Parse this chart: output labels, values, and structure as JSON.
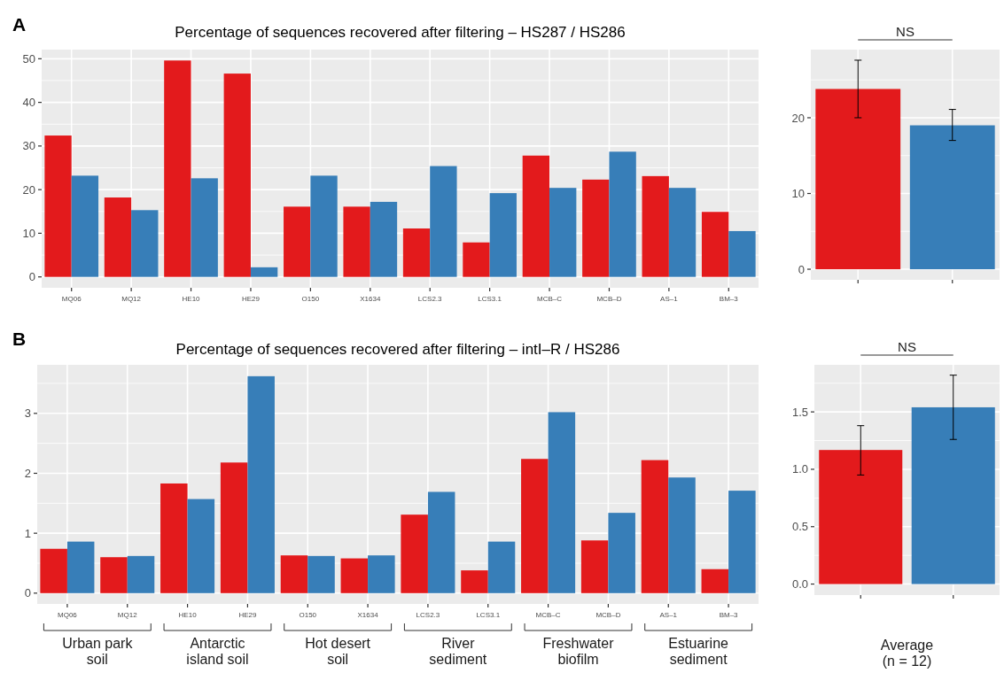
{
  "chart_data": [
    {
      "type": "bar",
      "title": "Percentage of sequences recovered after filtering – HS287 / HS286",
      "annotations": [
        "A"
      ],
      "categories": [
        "MQ06",
        "MQ12",
        "HE10",
        "HE29",
        "O150",
        "X1634",
        "LCS2.3",
        "LCS3.1",
        "MCB–C",
        "MCB–D",
        "AS–1",
        "BM–3"
      ],
      "series": [
        {
          "color": "#e31a1c",
          "values": [
            32.4,
            18.2,
            49.6,
            46.6,
            16.1,
            16.1,
            11.1,
            7.9,
            27.8,
            22.3,
            23.1,
            14.9
          ]
        },
        {
          "color": "#377eb8",
          "values": [
            23.2,
            15.3,
            22.6,
            2.2,
            23.2,
            17.2,
            25.4,
            19.2,
            20.4,
            28.7,
            20.4,
            10.5
          ]
        }
      ],
      "ylim": [
        -2.5,
        52.1
      ],
      "yticks": [
        0,
        10,
        20,
        30,
        40,
        50
      ],
      "grid": true
    },
    {
      "type": "bar",
      "annotations": [
        "NS"
      ],
      "categories": [
        null,
        null
      ],
      "values": [
        23.8,
        19.0
      ],
      "colors": [
        "#e31a1c",
        "#377eb8"
      ],
      "errors": [
        [
          20.0,
          27.6
        ],
        [
          17.0,
          21.1
        ]
      ],
      "ylim": [
        -1.4,
        29
      ],
      "yticks": [
        0,
        10,
        20
      ],
      "grid": true
    },
    {
      "type": "bar",
      "title": "Percentage of sequences recovered after filtering – intI–R / HS286",
      "annotations": [
        "B",
        "Urban park soil",
        "Antarctic island soil",
        "Hot desert soil",
        "River sediment",
        "Freshwater biofilm",
        "Estuarine sediment"
      ],
      "categories": [
        "MQ06",
        "MQ12",
        "HE10",
        "HE29",
        "O150",
        "X1634",
        "LCS2.3",
        "LCS3.1",
        "MCB–C",
        "MCB–D",
        "AS–1",
        "BM–3"
      ],
      "series": [
        {
          "color": "#e31a1c",
          "values": [
            0.74,
            0.6,
            1.83,
            2.18,
            0.63,
            0.58,
            1.31,
            0.38,
            2.24,
            0.88,
            2.22,
            0.4
          ]
        },
        {
          "color": "#377eb8",
          "values": [
            0.86,
            0.62,
            1.57,
            3.62,
            0.62,
            0.63,
            1.69,
            0.86,
            3.02,
            1.34,
            1.93,
            1.71
          ]
        }
      ],
      "ylim": [
        -0.18,
        3.81
      ],
      "yticks": [
        0,
        1,
        2,
        3
      ],
      "grid": true
    },
    {
      "type": "bar",
      "annotations": [
        "NS"
      ],
      "xlabel": "Average (n = 12)",
      "categories": [
        null,
        null
      ],
      "values": [
        1.168,
        1.54
      ],
      "colors": [
        "#e31a1c",
        "#377eb8"
      ],
      "errors": [
        [
          0.95,
          1.38
        ],
        [
          1.26,
          1.82
        ]
      ],
      "ylim": [
        -0.096,
        1.91
      ],
      "yticks": [
        {
          "value": 0,
          "label": "0.0"
        },
        {
          "value": 0.5,
          "label": "0.5"
        },
        {
          "value": 1,
          "label": "1.0"
        },
        {
          "value": 1.5,
          "label": "1.5"
        }
      ],
      "grid": true
    }
  ]
}
